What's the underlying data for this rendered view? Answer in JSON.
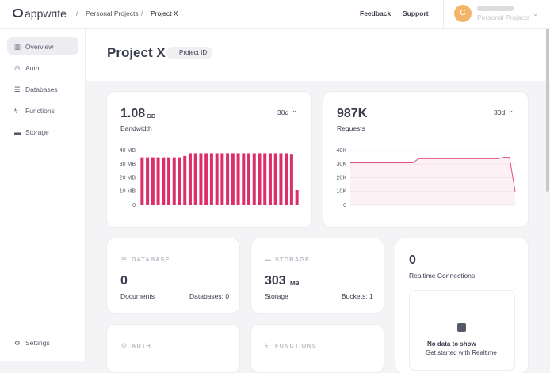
{
  "header": {
    "logo": "appwrite",
    "breadcrumb": [
      "Personal Projects",
      "Project X"
    ],
    "separator": "/",
    "links": [
      "Feedback",
      "Support"
    ],
    "avatar": "C",
    "org": "Personal Projects"
  },
  "sidebar": {
    "items": [
      "Overview",
      "Auth",
      "Databases",
      "Functions",
      "Storage"
    ],
    "settings": "Settings"
  },
  "page": {
    "title": "Project X",
    "project_id": "Project ID"
  },
  "bandwidth": {
    "value": "1.08",
    "unit": "GB",
    "label": "Bandwidth",
    "period": "30d",
    "chart": {
      "type": "bar",
      "color": "#dc2f68",
      "ylim": [
        0,
        40
      ],
      "yticks": [
        {
          "value": 40,
          "label": "40 MB"
        },
        {
          "value": 30,
          "label": "30 MB"
        },
        {
          "value": 20,
          "label": "20 MB"
        },
        {
          "value": 10,
          "label": "10 MB"
        },
        0
      ],
      "values": [
        35,
        35,
        35,
        35,
        35,
        35,
        35,
        35,
        36,
        38,
        38,
        38,
        38,
        38,
        38,
        38,
        38,
        38,
        38,
        38,
        38,
        38,
        38,
        38,
        38,
        38,
        38,
        38,
        37,
        11
      ]
    }
  },
  "requests": {
    "value": "987K",
    "label": "Requests",
    "period": "30d",
    "chart": {
      "type": "line",
      "color": "#e2507b",
      "ylim": [
        0,
        40000
      ],
      "yticks": [
        {
          "value": 40000,
          "label": "40K"
        },
        {
          "value": 30000,
          "label": "30K"
        },
        {
          "value": 20000,
          "label": "20K"
        },
        {
          "value": 10000,
          "label": "10K"
        },
        0
      ],
      "values": [
        31000,
        31000,
        31000,
        31000,
        31000,
        31000,
        31000,
        31000,
        31000,
        31000,
        31000,
        31000,
        34000,
        34000,
        34000,
        34000,
        34000,
        34000,
        34000,
        34000,
        34000,
        34000,
        34000,
        34000,
        34000,
        34000,
        34000,
        35000,
        35000,
        10000
      ]
    }
  },
  "database": {
    "title": "DATABASE",
    "value": "0",
    "label": "Documents",
    "extra": "Databases: 0"
  },
  "storage": {
    "title": "STORAGE",
    "value": "303",
    "unit": "MB",
    "label": "Storage",
    "extra": "Buckets: 1"
  },
  "realtime": {
    "value": "0",
    "label": "Realtime Connections",
    "empty": "No data to show",
    "link": "Get started with Realtime"
  },
  "auth": {
    "title": "AUTH"
  },
  "functions": {
    "title": "FUNCTIONS"
  }
}
